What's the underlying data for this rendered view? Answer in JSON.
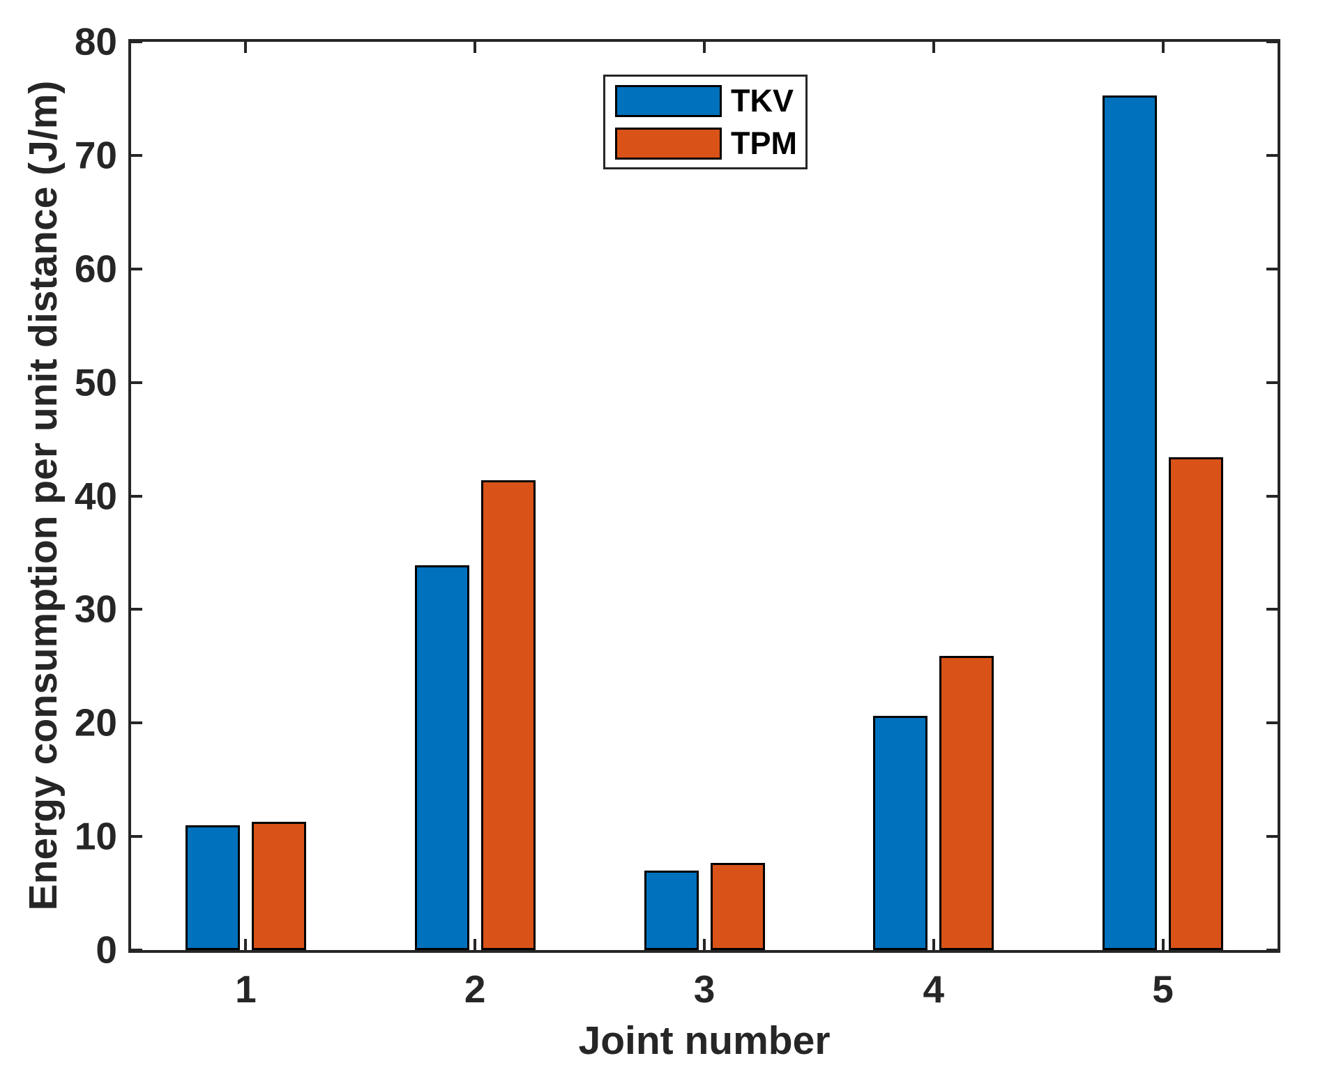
{
  "chart_data": {
    "type": "bar",
    "title": "",
    "xlabel": "Joint number",
    "ylabel": "Energy consumption per unit distance (J/m)",
    "categories": [
      "1",
      "2",
      "3",
      "4",
      "5"
    ],
    "series": [
      {
        "name": "TKV",
        "color": "#0072BD",
        "values": [
          11.0,
          33.9,
          7.0,
          20.6,
          75.3
        ]
      },
      {
        "name": "TPM",
        "color": "#D95319",
        "values": [
          11.3,
          41.4,
          7.7,
          25.9,
          43.4
        ]
      }
    ],
    "ylim": [
      0,
      80
    ],
    "yticks": [
      0,
      10,
      20,
      30,
      40,
      50,
      60,
      70,
      80
    ],
    "ytick_labels": [
      "0",
      "10",
      "20",
      "30",
      "40",
      "50",
      "60",
      "70",
      "80"
    ],
    "grid": false,
    "legend_position": "inside-top-center",
    "axis_color": "#262626",
    "bar_edge_color": "#000000",
    "background_color": "#ffffff"
  }
}
